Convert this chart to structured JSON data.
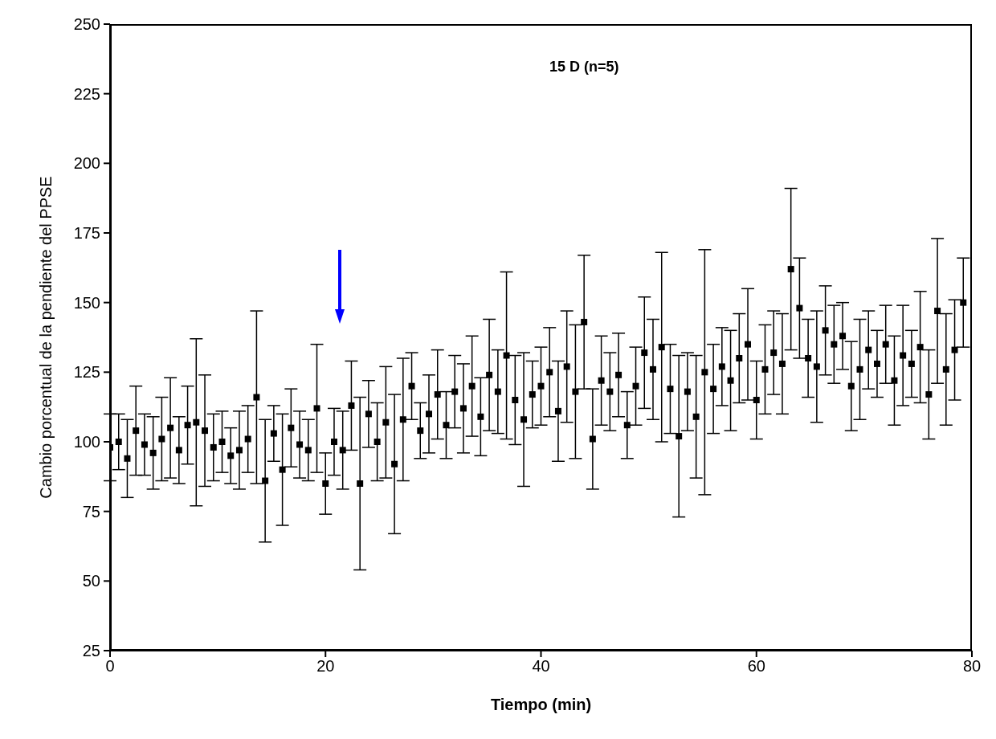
{
  "chart_data": {
    "type": "scatter",
    "title": "15 D (n=5)",
    "xlabel": "Tiempo (min)",
    "ylabel": "Cambio porcentual de la pendiente del PPSE",
    "x": [
      0,
      0.8,
      1.6,
      2.4,
      3.2,
      4,
      4.8,
      5.6,
      6.4,
      7.2,
      8,
      8.8,
      9.6,
      10.4,
      11.2,
      12,
      12.8,
      13.6,
      14.4,
      15.2,
      16,
      16.8,
      17.6,
      18.4,
      19.2,
      20,
      20.8,
      21.6,
      22.4,
      23.2,
      24,
      24.8,
      25.6,
      26.4,
      27.2,
      28,
      28.8,
      29.6,
      30.4,
      31.2,
      32,
      32.8,
      33.6,
      34.4,
      35.2,
      36,
      36.8,
      37.6,
      38.4,
      39.2,
      40,
      40.8,
      41.6,
      42.4,
      43.2,
      44,
      44.8,
      45.6,
      46.4,
      47.2,
      48,
      48.8,
      49.6,
      50.4,
      51.2,
      52,
      52.8,
      53.6,
      54.4,
      55.2,
      56,
      56.8,
      57.6,
      58.4,
      59.2,
      60,
      60.8,
      61.6,
      62.4,
      63.2,
      64,
      64.8,
      65.6,
      66.4,
      67.2,
      68,
      68.8,
      69.6,
      70.4,
      71.2,
      72,
      72.8,
      73.6,
      74.4,
      75.2,
      76,
      76.8,
      77.6,
      78.4,
      79.2
    ],
    "series": [
      {
        "color": "#000000",
        "values": [
          98,
          100,
          94,
          104,
          99,
          96,
          101,
          105,
          97,
          106,
          107,
          104,
          98,
          100,
          95,
          97,
          101,
          116,
          86,
          103,
          90,
          105,
          99,
          97,
          112,
          85,
          100,
          97,
          113,
          85,
          110,
          100,
          107,
          92,
          108,
          120,
          104,
          110,
          117,
          106,
          118,
          112,
          120,
          109,
          124,
          118,
          131,
          115,
          108,
          117,
          120,
          125,
          111,
          127,
          118,
          143,
          101,
          122,
          118,
          124,
          106,
          120,
          132,
          126,
          134,
          119,
          102,
          118,
          109,
          125,
          119,
          127,
          122,
          130,
          135,
          115,
          126,
          132,
          128,
          162,
          148,
          130,
          127,
          140,
          135,
          138,
          120,
          126,
          133,
          128,
          135,
          122,
          131,
          128,
          134,
          117,
          147,
          126,
          133,
          150
        ],
        "errors": [
          12,
          10,
          14,
          16,
          11,
          13,
          15,
          18,
          12,
          14,
          30,
          20,
          12,
          11,
          10,
          14,
          12,
          31,
          22,
          10,
          20,
          14,
          12,
          11,
          23,
          11,
          12,
          14,
          16,
          31,
          12,
          14,
          20,
          25,
          22,
          12,
          10,
          14,
          16,
          12,
          13,
          16,
          18,
          14,
          20,
          15,
          30,
          16,
          24,
          12,
          14,
          16,
          18,
          20,
          24,
          24,
          18,
          16,
          14,
          15,
          12,
          14,
          20,
          18,
          34,
          16,
          29,
          14,
          22,
          44,
          16,
          14,
          18,
          16,
          20,
          14,
          16,
          15,
          18,
          29,
          18,
          14,
          20,
          16,
          14,
          12,
          16,
          18,
          14,
          12,
          14,
          16,
          18,
          12,
          20,
          16,
          26,
          20,
          18,
          16
        ]
      }
    ],
    "xlim": [
      0,
      80
    ],
    "xticks": [
      0,
      20,
      40,
      60,
      80
    ],
    "ylim": [
      25,
      250
    ],
    "yticks": [
      25,
      50,
      75,
      100,
      125,
      150,
      175,
      200,
      225,
      250
    ],
    "grid": false,
    "legend": false,
    "marker": "square"
  }
}
